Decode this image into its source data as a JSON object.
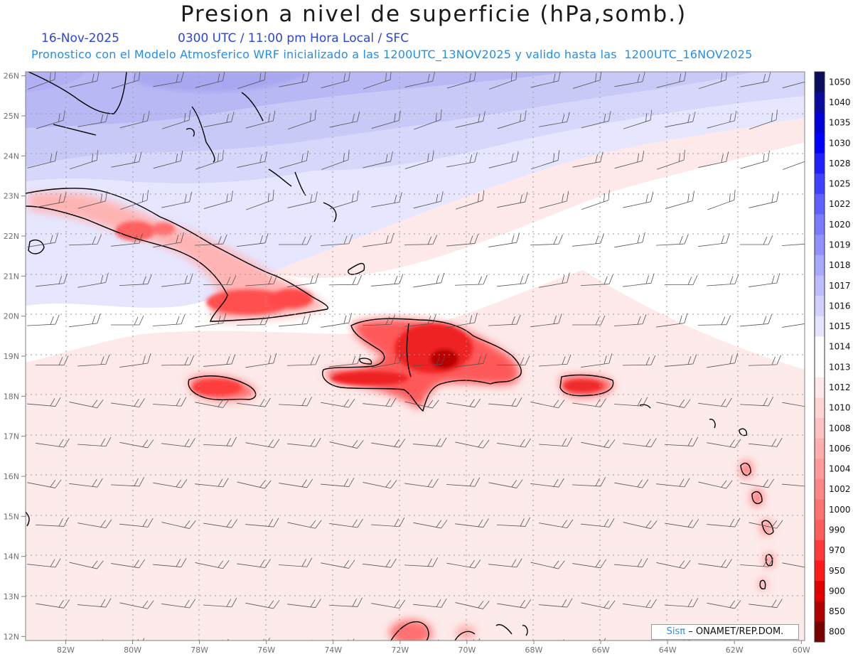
{
  "header": {
    "title": "Presion a nivel de superficie (hPa,somb.)",
    "date": "16-Nov-2025",
    "time": "0300 UTC / 11:00 pm Hora Local / SFC",
    "description": "Pronostico con el Modelo Atmosferico WRF inicializado a las 1200UTC_13NOV2025 y valido hasta las  1200UTC_16NOV2025"
  },
  "map": {
    "lon_range": [
      -83.2,
      -59.9
    ],
    "lat_range": [
      11.9,
      26.1
    ],
    "lat_labels": [
      "26N",
      "25N",
      "24N",
      "23N",
      "22N",
      "21N",
      "20N",
      "19N",
      "18N",
      "17N",
      "16N",
      "15N",
      "14N",
      "13N",
      "12N"
    ],
    "lon_labels": [
      "82W",
      "80W",
      "78W",
      "76W",
      "74W",
      "72W",
      "70W",
      "68W",
      "66W",
      "64W",
      "62W",
      "60W"
    ]
  },
  "colorbar": {
    "levels": [
      "1050",
      "1040",
      "1035",
      "1030",
      "1028",
      "1025",
      "1022",
      "1020",
      "1019",
      "1018",
      "1017",
      "1016",
      "1015",
      "1014",
      "1013",
      "1012",
      "1010",
      "1008",
      "1006",
      "1004",
      "1002",
      "1000",
      "990",
      "970",
      "950",
      "900",
      "850",
      "800"
    ],
    "colors": [
      "#0d0d5e",
      "#0a0a9e",
      "#0000d8",
      "#0000ff",
      "#2020ff",
      "#4040ff",
      "#6060ff",
      "#7a7aff",
      "#9090ff",
      "#a8a8ff",
      "#bcbcff",
      "#d0d0ff",
      "#e4e4ff",
      "#ffffff",
      "#ffffff",
      "#ffe8e8",
      "#ffd6d6",
      "#ffc2c2",
      "#ffaeae",
      "#ff9a9a",
      "#ff8686",
      "#ff7272",
      "#ff5c5c",
      "#ff3a3a",
      "#ff1a1a",
      "#e00000",
      "#b00000",
      "#780000"
    ]
  },
  "credit": {
    "logo": "Sisπ",
    "text": "– ONAMET/REP.DOM."
  }
}
